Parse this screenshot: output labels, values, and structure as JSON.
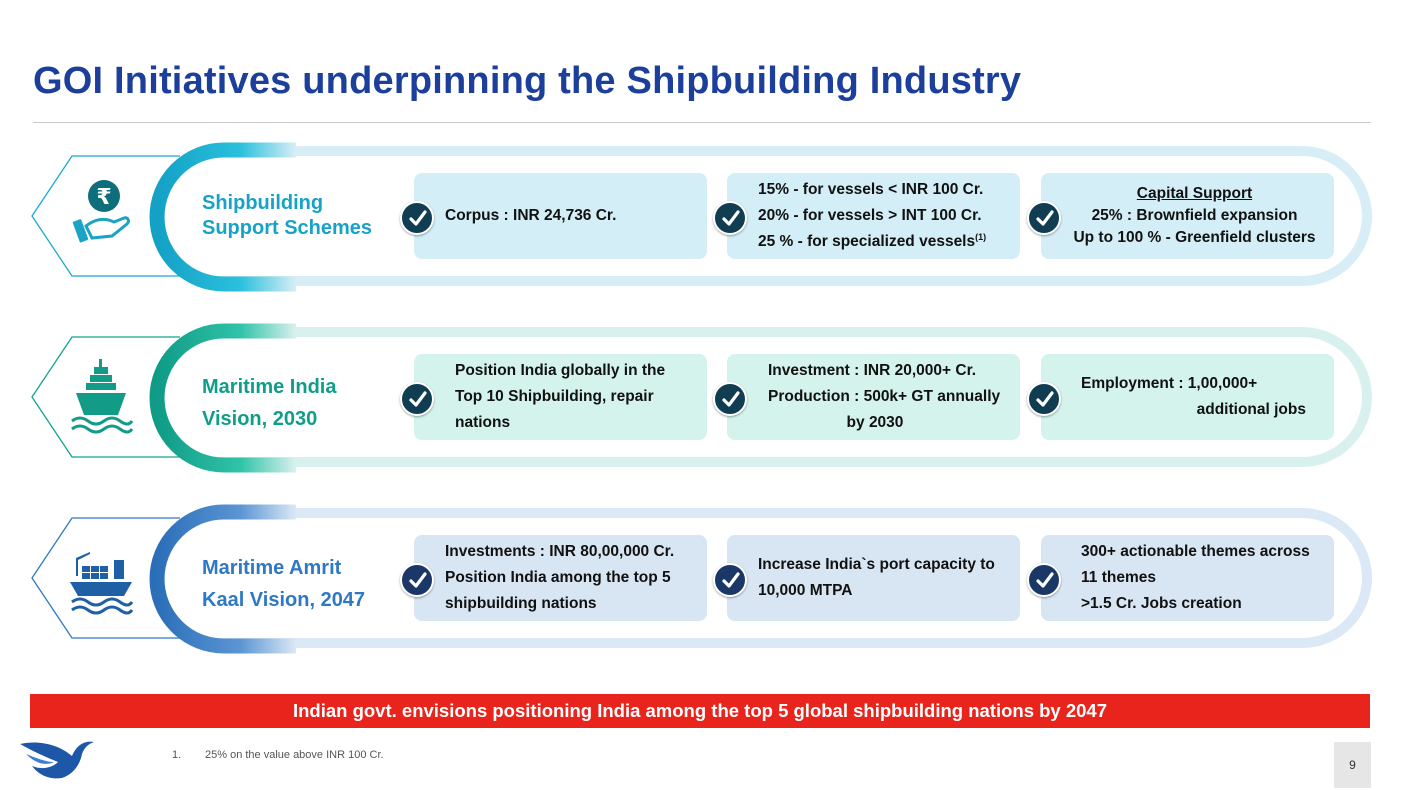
{
  "title": "GOI Initiatives underpinning the Shipbuilding Industry",
  "rows": [
    {
      "label_line1": "Shipbuilding",
      "label_line2": "Support Schemes",
      "icon": "rupee-hand-icon",
      "cards": [
        {
          "lines": [
            "Corpus : INR 24,736 Cr."
          ]
        },
        {
          "lines": [
            "15% - for vessels < INR 100 Cr.",
            "20% - for vessels > INT 100 Cr.",
            "25 % - for specialized vessels"
          ],
          "superscript": "(1)"
        },
        {
          "heading": "Capital Support",
          "lines": [
            "25% : Brownfield expansion",
            "Up to 100 % - Greenfield clusters"
          ]
        }
      ]
    },
    {
      "label_line1": "Maritime India",
      "label_line2": "Vision, 2030",
      "icon": "ship-waves-icon",
      "cards": [
        {
          "lines": [
            "Position India globally in the",
            "Top 10 Shipbuilding, repair",
            "nations"
          ]
        },
        {
          "lines": [
            "Investment : INR 20,000+ Cr.",
            "Production : 500k+ GT annually",
            "by 2030"
          ]
        },
        {
          "lines": [
            "Employment : 1,00,000+",
            "additional jobs"
          ]
        }
      ]
    },
    {
      "label_line1": "Maritime Amrit",
      "label_line2": "Kaal Vision, 2047",
      "icon": "container-ship-icon",
      "cards": [
        {
          "lines": [
            "Investments : INR 80,00,000 Cr.",
            "Position India among the top 5",
            "shipbuilding nations"
          ]
        },
        {
          "lines": [
            "Increase India`s port capacity to",
            "10,000 MTPA"
          ]
        },
        {
          "lines": [
            "300+ actionable themes across",
            "11 themes",
            ">1.5 Cr. Jobs creation"
          ]
        }
      ]
    }
  ],
  "banner": "Indian govt. envisions positioning India among the top 5 global shipbuilding nations by 2047",
  "footnote": {
    "number": "1.",
    "text": "25% on the value above INR 100 Cr."
  },
  "page_number": "9",
  "colors": {
    "title": "#1b3f9b",
    "row1_accent": "#17a3c8",
    "row2_accent": "#0f9e8a",
    "row3_accent": "#2f78c4",
    "banner": "#e8241c"
  }
}
